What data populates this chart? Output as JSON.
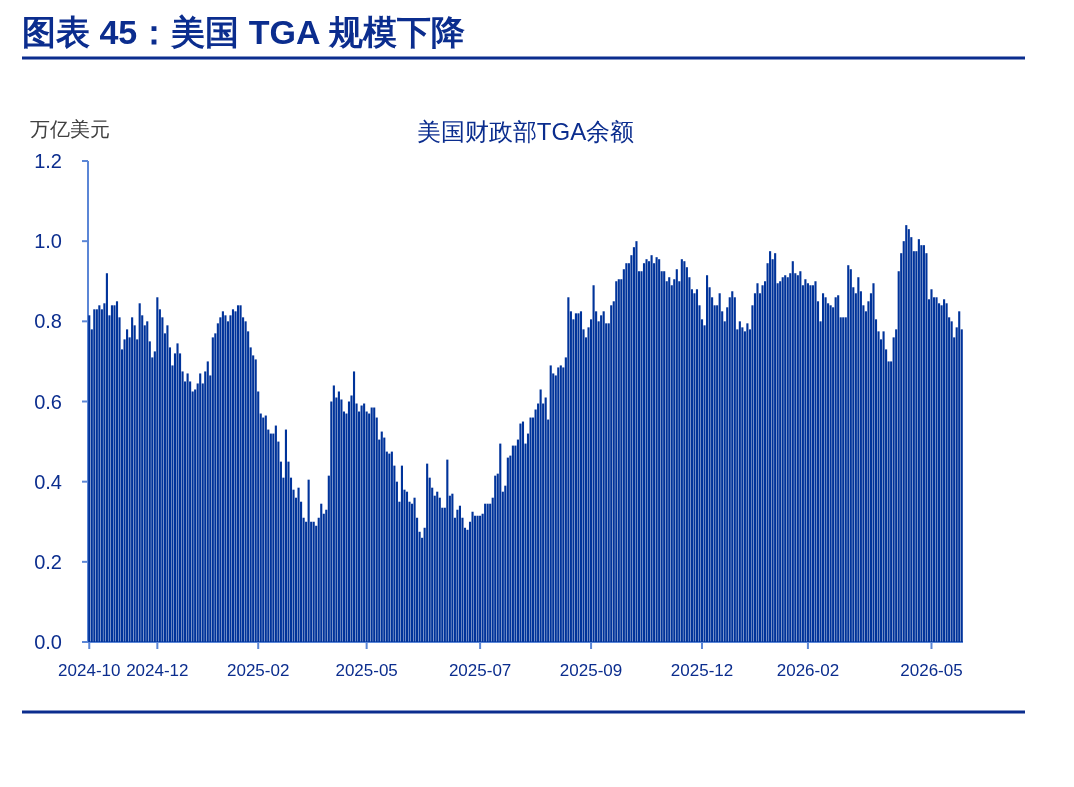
{
  "chart_data": {
    "type": "bar",
    "title": "图表 45：美国 TGA 规模下降",
    "subtitle": "美国财政部TGA余额",
    "ylabel": "万亿美元",
    "color": "#00339a",
    "categories": [
      "2024-10",
      null,
      null,
      null,
      null,
      null,
      null,
      null,
      null,
      null,
      null,
      null,
      null,
      null,
      null,
      null,
      null,
      null,
      null,
      null,
      null,
      null,
      null,
      null,
      null,
      null,
      null,
      "2024-12",
      null,
      null,
      null,
      null,
      null,
      null,
      null,
      null,
      null,
      null,
      null,
      null,
      null,
      null,
      null,
      null,
      null,
      null,
      null,
      null,
      null,
      null,
      null,
      null,
      null,
      null,
      null,
      null,
      null,
      null,
      null,
      null,
      null,
      null,
      null,
      null,
      null,
      null,
      null,
      "2025-02",
      null,
      null,
      null,
      null,
      null,
      null,
      null,
      null,
      null,
      null,
      null,
      null,
      null,
      null,
      null,
      null,
      null,
      null,
      null,
      null,
      null,
      null,
      null,
      null,
      null,
      null,
      null,
      null,
      null,
      null,
      null,
      null,
      null,
      null,
      null,
      null,
      null,
      null,
      null,
      null,
      null,
      null,
      "2025-05",
      null,
      null,
      null,
      null,
      null,
      null,
      null,
      null,
      null,
      null,
      null,
      null,
      null,
      null,
      null,
      null,
      null,
      null,
      null,
      null,
      null,
      null,
      null,
      null,
      null,
      null,
      null,
      null,
      null,
      null,
      null,
      null,
      null,
      null,
      null,
      null,
      null,
      null,
      null,
      null,
      null,
      null,
      null,
      null,
      "2025-07",
      null,
      null,
      null,
      null,
      null,
      null,
      null,
      null,
      null,
      null,
      null,
      null,
      null,
      null,
      null,
      null,
      null,
      null,
      null,
      null,
      null,
      null,
      null,
      null,
      null,
      null,
      null,
      null,
      null,
      null,
      null,
      null,
      null,
      null,
      null,
      null,
      null,
      null,
      null,
      null,
      null,
      null,
      null,
      "2025-09",
      null,
      null,
      null,
      null,
      null,
      null,
      null,
      null,
      null,
      null,
      null,
      null,
      null,
      null,
      null,
      null,
      null,
      null,
      null,
      null,
      null,
      null,
      null,
      null,
      null,
      null,
      null,
      null,
      null,
      null,
      null,
      null,
      null,
      null,
      null,
      null,
      null,
      null,
      null,
      null,
      null,
      null,
      null,
      "2025-12",
      null,
      null,
      null,
      null,
      null,
      null,
      null,
      null,
      null,
      null,
      null,
      null,
      null,
      null,
      null,
      null,
      null,
      null,
      null,
      null,
      null,
      null,
      null,
      null,
      null,
      null,
      null,
      null,
      null,
      null,
      null,
      null,
      null,
      null,
      null,
      null,
      null,
      null,
      null,
      null,
      null,
      "2026-02",
      null,
      null,
      null,
      null,
      null,
      null,
      null,
      null,
      null,
      null,
      null,
      null,
      null,
      null,
      null,
      null,
      null,
      null,
      null,
      null,
      null,
      null,
      null,
      null,
      null,
      null,
      null,
      null,
      null,
      null,
      null,
      null,
      null,
      null,
      null,
      null,
      null,
      null,
      null,
      null,
      null,
      null,
      null,
      null,
      null,
      null,
      null,
      null,
      "2026-05",
      null,
      null,
      null,
      null,
      null,
      null,
      null,
      null,
      null,
      null,
      null,
      null
    ],
    "values": [
      0.815,
      0.78,
      0.83,
      0.83,
      0.84,
      0.83,
      0.845,
      0.92,
      0.815,
      0.84,
      0.84,
      0.85,
      0.81,
      0.73,
      0.755,
      0.78,
      0.76,
      0.81,
      0.79,
      0.755,
      0.845,
      0.815,
      0.79,
      0.8,
      0.75,
      0.71,
      0.725,
      0.86,
      0.83,
      0.81,
      0.77,
      0.79,
      0.735,
      0.69,
      0.72,
      0.745,
      0.72,
      0.675,
      0.65,
      0.67,
      0.65,
      0.625,
      0.63,
      0.645,
      0.67,
      0.645,
      0.675,
      0.7,
      0.665,
      0.76,
      0.77,
      0.795,
      0.81,
      0.825,
      0.815,
      0.8,
      0.815,
      0.83,
      0.825,
      0.84,
      0.84,
      0.81,
      0.8,
      0.775,
      0.735,
      0.715,
      0.705,
      0.625,
      0.57,
      0.56,
      0.565,
      0.53,
      0.52,
      0.52,
      0.54,
      0.5,
      0.45,
      0.41,
      0.53,
      0.45,
      0.41,
      0.38,
      0.36,
      0.385,
      0.35,
      0.31,
      0.3,
      0.405,
      0.3,
      0.3,
      0.29,
      0.31,
      0.345,
      0.32,
      0.33,
      0.415,
      0.6,
      0.64,
      0.61,
      0.625,
      0.605,
      0.575,
      0.57,
      0.6,
      0.615,
      0.675,
      0.595,
      0.575,
      0.59,
      0.595,
      0.575,
      0.57,
      0.585,
      0.585,
      0.56,
      0.505,
      0.525,
      0.51,
      0.475,
      0.47,
      0.475,
      0.44,
      0.4,
      0.35,
      0.44,
      0.38,
      0.375,
      0.35,
      0.345,
      0.36,
      0.31,
      0.275,
      0.26,
      0.285,
      0.445,
      0.41,
      0.385,
      0.365,
      0.375,
      0.36,
      0.335,
      0.335,
      0.455,
      0.365,
      0.37,
      0.31,
      0.33,
      0.34,
      0.31,
      0.285,
      0.28,
      0.3,
      0.325,
      0.315,
      0.315,
      0.315,
      0.32,
      0.345,
      0.345,
      0.345,
      0.36,
      0.415,
      0.42,
      0.495,
      0.375,
      0.39,
      0.46,
      0.465,
      0.49,
      0.49,
      0.505,
      0.545,
      0.55,
      0.495,
      0.52,
      0.56,
      0.56,
      0.58,
      0.595,
      0.63,
      0.595,
      0.61,
      0.555,
      0.69,
      0.67,
      0.665,
      0.685,
      0.69,
      0.685,
      0.71,
      0.86,
      0.825,
      0.805,
      0.82,
      0.82,
      0.825,
      0.78,
      0.76,
      0.785,
      0.805,
      0.89,
      0.825,
      0.8,
      0.815,
      0.825,
      0.795,
      0.795,
      0.84,
      0.85,
      0.9,
      0.905,
      0.905,
      0.93,
      0.945,
      0.945,
      0.965,
      0.985,
      1.0,
      0.925,
      0.925,
      0.945,
      0.955,
      0.95,
      0.965,
      0.945,
      0.96,
      0.955,
      0.925,
      0.925,
      0.9,
      0.91,
      0.89,
      0.905,
      0.93,
      0.9,
      0.955,
      0.95,
      0.935,
      0.91,
      0.88,
      0.87,
      0.88,
      0.84,
      0.805,
      0.79,
      0.915,
      0.885,
      0.86,
      0.84,
      0.84,
      0.87,
      0.825,
      0.8,
      0.835,
      0.86,
      0.875,
      0.86,
      0.78,
      0.8,
      0.785,
      0.775,
      0.795,
      0.78,
      0.84,
      0.87,
      0.895,
      0.87,
      0.89,
      0.9,
      0.945,
      0.975,
      0.955,
      0.97,
      0.895,
      0.9,
      0.91,
      0.915,
      0.91,
      0.92,
      0.95,
      0.92,
      0.915,
      0.925,
      0.89,
      0.905,
      0.895,
      0.89,
      0.89,
      0.9,
      0.85,
      0.8,
      0.87,
      0.86,
      0.845,
      0.84,
      0.835,
      0.86,
      0.865,
      0.81,
      0.81,
      0.81,
      0.94,
      0.93,
      0.885,
      0.87,
      0.91,
      0.875,
      0.84,
      0.825,
      0.85,
      0.87,
      0.895,
      0.805,
      0.775,
      0.755,
      0.775,
      0.73,
      0.7,
      0.7,
      0.76,
      0.78,
      0.925,
      0.97,
      1.0,
      1.04,
      1.03,
      1.01,
      0.975,
      0.975,
      1.005,
      0.99,
      0.99,
      0.97,
      0.855,
      0.88,
      0.86,
      0.86,
      0.845,
      0.84,
      0.855,
      0.845,
      0.81,
      0.8,
      0.76,
      0.785,
      0.825,
      0.78
    ],
    "ylim": [
      0,
      1.2
    ],
    "yticks": [
      {
        "value": 0,
        "label": "0.0"
      },
      0.2,
      0.4,
      0.6,
      0.8,
      {
        "value": 1,
        "label": "1.0"
      },
      1.2
    ]
  }
}
